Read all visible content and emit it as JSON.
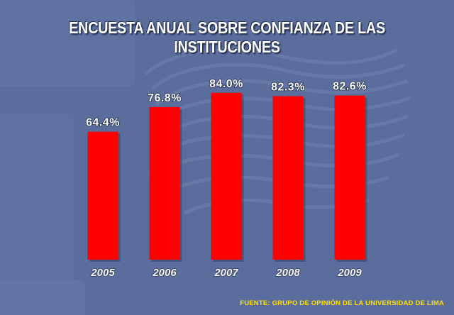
{
  "chart_data": {
    "type": "bar",
    "title": "ENCUESTA ANUAL SOBRE CONFIANZA DE LAS INSTITUCIONES",
    "categories": [
      "2005",
      "2006",
      "2007",
      "2008",
      "2009"
    ],
    "values": [
      64.4,
      76.8,
      84.0,
      82.3,
      82.6
    ],
    "value_labels": [
      "64.4%",
      "76.8%",
      "84.0%",
      "82.3%",
      "82.6%"
    ],
    "xlabel": "",
    "ylabel": "",
    "ylim": [
      0,
      100
    ],
    "grid": false,
    "bar_color": "#ff0000",
    "source": "FUENTE: GRUPO DE OPINIÓN DE LA UNIVERSIDAD DE LIMA"
  }
}
